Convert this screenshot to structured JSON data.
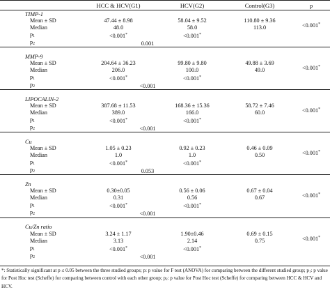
{
  "header": {
    "g1": "HCC & HCV(G1)",
    "g2": "HCV(G2)",
    "g3": "Control(G3)",
    "p": "p"
  },
  "labels": {
    "mean_sd": "Mean ± SD",
    "median": "Median",
    "p_sym": "p",
    "p1_sub": "1",
    "p2_sub": "2",
    "star": "*"
  },
  "sections": [
    {
      "title": "TIMP-1",
      "g1_mean": "47.44 ± 8.98",
      "g2_mean": "58.04 ± 9.52",
      "g3_mean": "110.80 ± 9.36",
      "p": "<0.001",
      "p_star": "*",
      "g1_median": "48.0",
      "g2_median": "58.0",
      "g3_median": "113.0",
      "p1_g1": "<0.001",
      "p1_g1_star": "*",
      "p1_g2": "<0.001",
      "p1_g2_star": "*",
      "p2_val": "0.001",
      "p2_star": "*"
    },
    {
      "title": "MMP-9",
      "g1_mean": "204.64 ± 36.23",
      "g2_mean": "99.80 ± 9.80",
      "g3_mean": "49.88 ± 3.69",
      "p": "<0.001",
      "p_star": "*",
      "g1_median": "206.0",
      "g2_median": "100.0",
      "g3_median": "49.0",
      "p1_g1": "<0.001",
      "p1_g1_star": "*",
      "p1_g2": "<0.001",
      "p1_g2_star": "*",
      "p2_val": "<0.001",
      "p2_star": "*"
    },
    {
      "title": "LIPOCALIN-2",
      "g1_mean": "387.68 ± 11.53",
      "g2_mean": "168.36 ± 15.36",
      "g3_mean": "58.72 ± 7.46",
      "p": "<0.001",
      "p_star": "*",
      "g1_median": "389.0",
      "g2_median": "166.0",
      "g3_median": "60.0",
      "p1_g1": "<0.001",
      "p1_g1_star": "*",
      "p1_g2": "<0.001",
      "p1_g2_star": "*",
      "p2_val": "<0.001",
      "p2_star": "*"
    },
    {
      "title": "Cu",
      "g1_mean": "1.05 ± 0.23",
      "g2_mean": "0.92 ± 0.23",
      "g3_mean": "0.46 ± 0.09",
      "p": "<0.001",
      "p_star": "*",
      "g1_median": "1.0",
      "g2_median": "1.0",
      "g3_median": "0.50",
      "p1_g1": "<0.001",
      "p1_g1_star": "*",
      "p1_g2": "<0.001",
      "p1_g2_star": "*",
      "p2_val": "0.053",
      "p2_star": ""
    },
    {
      "title": "Zn",
      "g1_mean": "0.30±0.05",
      "g2_mean": "0.56 ± 0.06",
      "g3_mean": "0.67 ± 0.04",
      "p": "<0.001",
      "p_star": "*",
      "g1_median": "0.31",
      "g2_median": "0.56",
      "g3_median": "0.67",
      "p1_g1": "<0.001",
      "p1_g1_star": "*",
      "p1_g2": "<0.001",
      "p1_g2_star": "*",
      "p2_val": "<0.001",
      "p2_star": "*"
    },
    {
      "title": "Cu/Zn ratio",
      "g1_mean": "3.24 ± 1.17",
      "g2_mean": "1.90±0.46",
      "g3_mean": "0.69 ± 0.15",
      "p": "<0.001",
      "p_star": "*",
      "g1_median": "3.13",
      "g2_median": "2.14",
      "g3_median": "0.75",
      "p1_g1": "<0.001",
      "p1_g1_star": "*",
      "p1_g2": "<0.001",
      "p1_g2_star": "*",
      "p2_val": "<0.001",
      "p2_star": "*"
    }
  ],
  "footnote": {
    "star": "*",
    "text1": ": Statistically significant at p ≤ 0.05 between the three studied groups; p: p value for F test (ANOVA) for comparing between the different studied group; p",
    "sub1": "1",
    "text2": ": p value for Post Hoc test (Scheffe) for comparing between control with each other group; p",
    "sub2": "2",
    "text3": ": p value for Post Hoc test (Scheffe) for comparing between HCC & HCV and HCV."
  }
}
